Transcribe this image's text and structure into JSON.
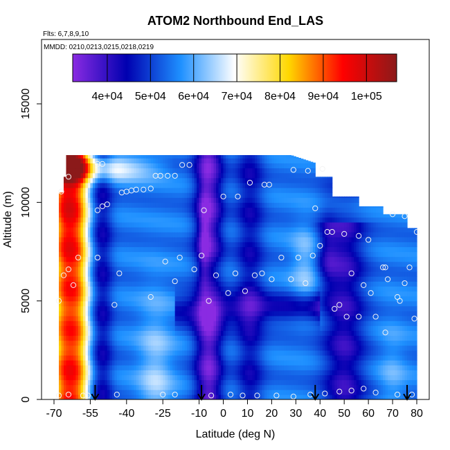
{
  "chart_data": {
    "type": "heatmap",
    "title": "ATOM2 Northbound End_LAS",
    "subtitle_flights": "Flts: 6,7,8,9,10",
    "subtitle_dates": "MMDD: 0210,0213,0215,0218,0219",
    "xlabel": "Latitude (deg N)",
    "ylabel": "Altitude (m)",
    "xlim": [
      -70,
      85
    ],
    "ylim": [
      0,
      17500
    ],
    "x_ticks": [
      -70,
      -55,
      -40,
      -25,
      -10,
      0,
      10,
      20,
      30,
      40,
      50,
      60,
      70,
      80
    ],
    "y_ticks": [
      0,
      5000,
      10000,
      15000
    ],
    "colorbar": {
      "range": [
        32000,
        107000
      ],
      "ticks": [
        40000,
        50000,
        60000,
        70000,
        80000,
        90000,
        100000
      ],
      "tick_labels": [
        "4e+04",
        "5e+04",
        "6e+04",
        "7e+04",
        "8e+04",
        "9e+04",
        "1e+05"
      ],
      "colors": [
        "#8a2be2",
        "#0000b0",
        "#1e90ff",
        "#ffffff",
        "#ffd700",
        "#ff0000",
        "#8b1a1a"
      ]
    },
    "grid": false,
    "legend": "top (horizontal colorbar)",
    "arrows_lat": [
      -53,
      -9,
      38,
      76
    ],
    "points": [
      [
        -68,
        200
      ],
      [
        -64,
        250
      ],
      [
        -58,
        200
      ],
      [
        -56,
        200
      ],
      [
        -44,
        250
      ],
      [
        -25,
        250
      ],
      [
        -20,
        250
      ],
      [
        -5,
        200
      ],
      [
        3,
        250
      ],
      [
        8,
        200
      ],
      [
        14,
        200
      ],
      [
        22,
        200
      ],
      [
        29,
        150
      ],
      [
        36,
        250
      ],
      [
        42,
        300
      ],
      [
        48,
        400
      ],
      [
        53,
        450
      ],
      [
        58,
        550
      ],
      [
        63,
        350
      ],
      [
        72,
        250
      ],
      [
        78,
        250
      ],
      [
        -68,
        5000
      ],
      [
        -62,
        5800
      ],
      [
        -66,
        6300
      ],
      [
        -64,
        6600
      ],
      [
        -60,
        7200
      ],
      [
        -52,
        7200
      ],
      [
        -45,
        4800
      ],
      [
        -43,
        6400
      ],
      [
        -30,
        5200
      ],
      [
        -24,
        7000
      ],
      [
        -20,
        6000
      ],
      [
        -18,
        7200
      ],
      [
        -12,
        6600
      ],
      [
        -9,
        7300
      ],
      [
        -6,
        5000
      ],
      [
        -3,
        6300
      ],
      [
        2,
        5400
      ],
      [
        5,
        6400
      ],
      [
        9,
        5500
      ],
      [
        13,
        6300
      ],
      [
        16,
        6400
      ],
      [
        20,
        6100
      ],
      [
        24,
        7200
      ],
      [
        28,
        6100
      ],
      [
        31,
        7200
      ],
      [
        34,
        5900
      ],
      [
        37,
        7300
      ],
      [
        46,
        4600
      ],
      [
        48,
        4800
      ],
      [
        51,
        4200
      ],
      [
        53,
        6400
      ],
      [
        56,
        4200
      ],
      [
        58,
        5800
      ],
      [
        61,
        5400
      ],
      [
        63,
        4200
      ],
      [
        66,
        6700
      ],
      [
        67,
        6700
      ],
      [
        67,
        3400
      ],
      [
        68,
        6100
      ],
      [
        72,
        5200
      ],
      [
        73,
        5000
      ],
      [
        75,
        5900
      ],
      [
        77,
        6700
      ],
      [
        79,
        4100
      ],
      [
        -52,
        9600
      ],
      [
        -50,
        9800
      ],
      [
        -48,
        9900
      ],
      [
        -42,
        10500
      ],
      [
        -40,
        10550
      ],
      [
        -38,
        10600
      ],
      [
        -36,
        10650
      ],
      [
        -33,
        10650
      ],
      [
        -30,
        10700
      ],
      [
        -8,
        9600
      ],
      [
        0,
        10300
      ],
      [
        6,
        10300
      ],
      [
        11,
        11000
      ],
      [
        17,
        10900
      ],
      [
        19,
        10900
      ],
      [
        38,
        9700
      ],
      [
        40,
        7800
      ],
      [
        43,
        8500
      ],
      [
        45,
        8500
      ],
      [
        50,
        8400
      ],
      [
        56,
        8300
      ],
      [
        60,
        8100
      ],
      [
        70,
        9400
      ],
      [
        75,
        9300
      ],
      [
        80,
        8500
      ],
      [
        -67,
        10550
      ],
      [
        -64,
        11300
      ],
      [
        -52,
        11950
      ],
      [
        -50,
        11950
      ],
      [
        -28,
        11350
      ],
      [
        -26,
        11350
      ],
      [
        -23,
        11350
      ],
      [
        -20,
        11350
      ],
      [
        -17,
        11900
      ],
      [
        -14,
        11900
      ],
      [
        29,
        11650
      ],
      [
        35,
        11600
      ],
      [
        41,
        11700
      ]
    ]
  }
}
